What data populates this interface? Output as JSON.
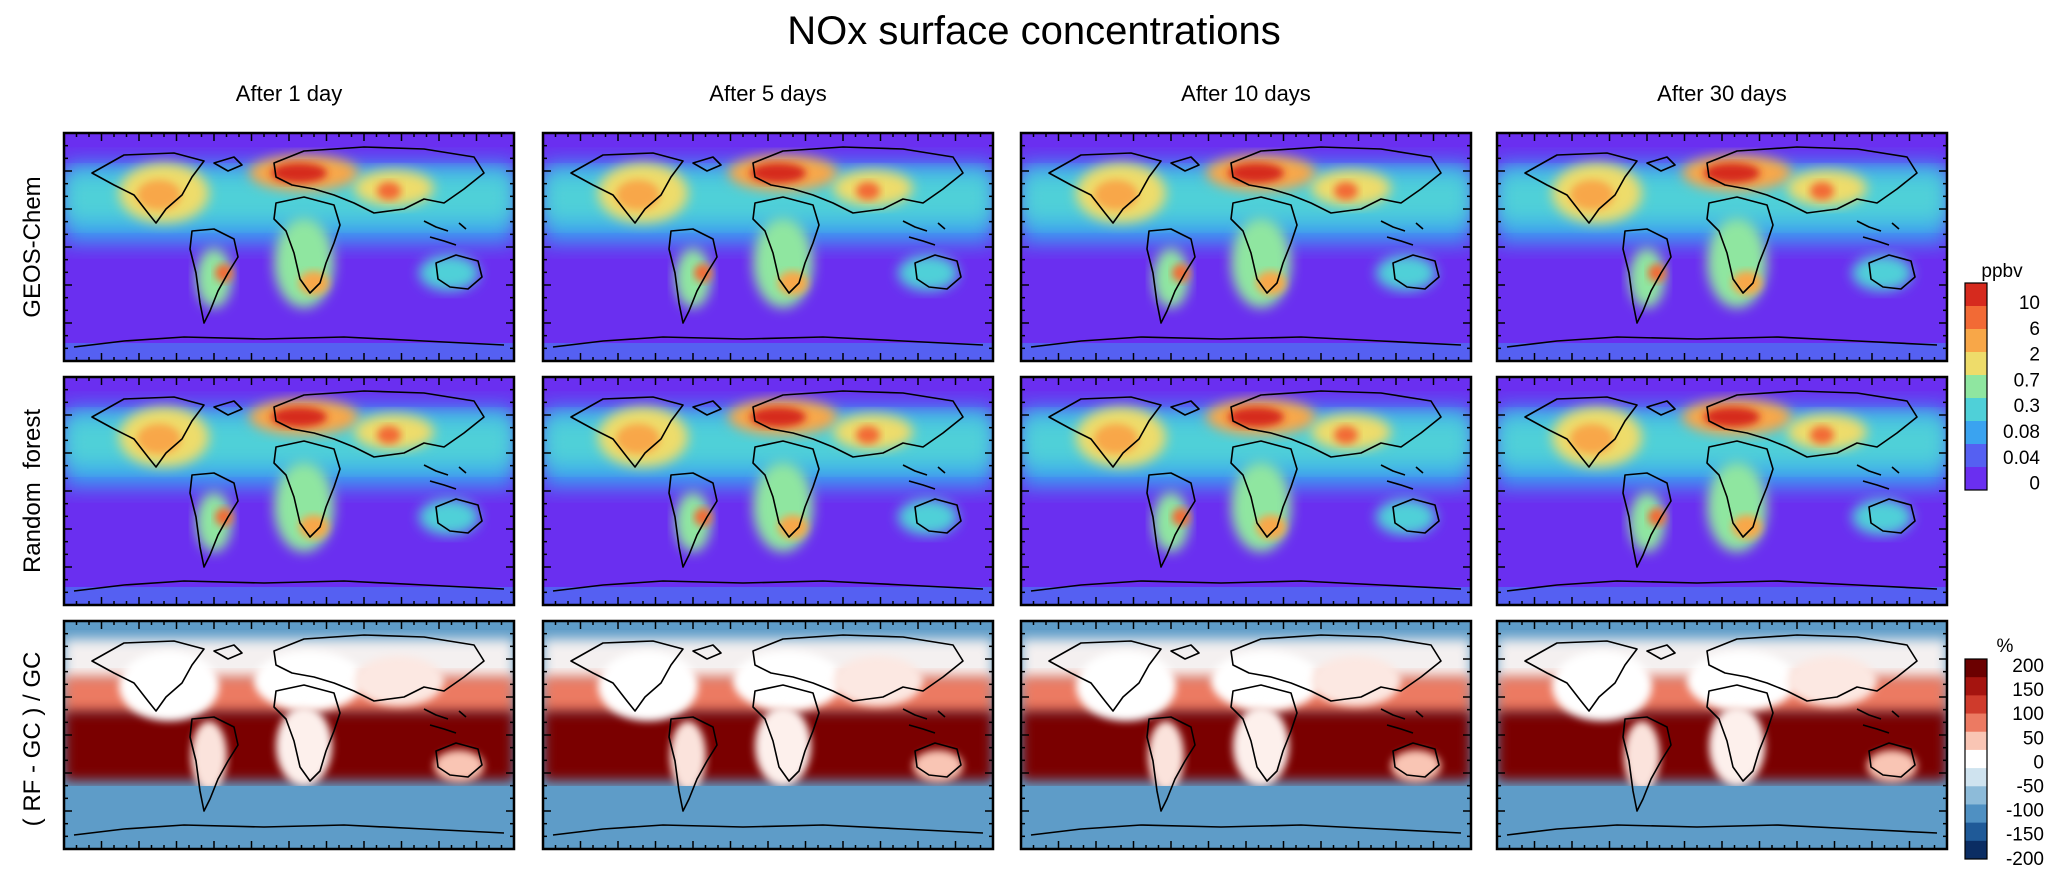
{
  "title": "NOx surface concentrations",
  "columns": [
    "After 1 day",
    "After 5 days",
    "After 10 days",
    "After 30 days"
  ],
  "rows": [
    "GEOS-Chem",
    "Random  forest",
    "( RF - GC ) / GC"
  ],
  "colorbar_ppbv": {
    "unit": "ppbv",
    "ticks": [
      "10",
      "6",
      "2",
      "0.7",
      "0.3",
      "0.08",
      "0.04",
      "0"
    ],
    "colors": [
      "#d62a1e",
      "#f26a35",
      "#f8a748",
      "#eedc6a",
      "#8fe6a0",
      "#4fd0d8",
      "#3aa3f0",
      "#5560f2",
      "#6a2ff0"
    ]
  },
  "colorbar_pct": {
    "unit": "%",
    "ticks": [
      "200",
      "150",
      "100",
      "50",
      "0",
      "-50",
      "-100",
      "-150",
      "-200"
    ],
    "colors": [
      "#6b0000",
      "#a5140f",
      "#cf3b2c",
      "#ec7a62",
      "#f9c5b4",
      "#ffffff",
      "#cfe3ef",
      "#8dbbd9",
      "#4f90c2",
      "#1f5a98",
      "#0b2d63"
    ]
  },
  "chart_data": {
    "type": "heatmap",
    "title": "NOx surface concentrations",
    "panels_columns": [
      "After 1 day",
      "After 5 days",
      "After 10 days",
      "After 30 days"
    ],
    "panels_rows": [
      "GEOS-Chem",
      "Random  forest",
      "( RF - GC ) / GC"
    ],
    "concentration_scale": {
      "unit": "ppbv",
      "levels": [
        0,
        0.04,
        0.08,
        0.3,
        0.7,
        2,
        6,
        10
      ]
    },
    "difference_scale": {
      "unit": "%",
      "levels": [
        -200,
        -150,
        -100,
        -50,
        0,
        50,
        100,
        150,
        200
      ]
    },
    "map": "global surface field, continents outlined"
  }
}
